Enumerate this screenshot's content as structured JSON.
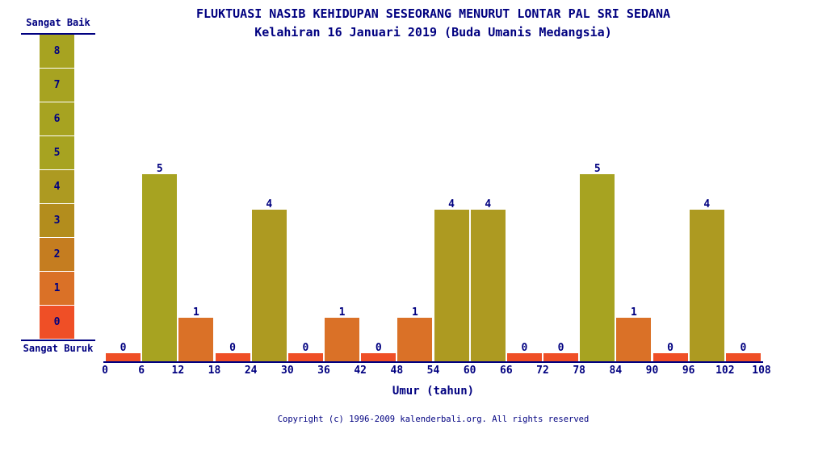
{
  "title": {
    "line1": "FLUKTUASI NASIB KEHIDUPAN SESEORANG MENURUT LONTAR PAL SRI SEDANA",
    "line2": "Kelahiran 16 Januari 2019 (Buda Umanis Medangsia)"
  },
  "legend": {
    "top_label": "Sangat Baik",
    "bottom_label": "Sangat Buruk",
    "levels": [
      8,
      7,
      6,
      5,
      4,
      3,
      2,
      1,
      0
    ]
  },
  "palette": {
    "8": "#a7a321",
    "7": "#a7a321",
    "6": "#a7a321",
    "5": "#a7a321",
    "4": "#ad9a21",
    "3": "#b38d1d",
    "2": "#c57d20",
    "1": "#da7127",
    "0": "#ef4f26"
  },
  "colors": {
    "text": "#000080",
    "axis": "#000080",
    "background": "#ffffff"
  },
  "chart_data": {
    "type": "bar",
    "title": "FLUKTUASI NASIB KEHIDUPAN SESEORANG MENURUT LONTAR PAL SRI SEDANA",
    "subtitle": "Kelahiran 16 Januari 2019 (Buda Umanis Medangsia)",
    "xlabel": "Umur (tahun)",
    "ylabel": "",
    "ylim": [
      0,
      8
    ],
    "grid": false,
    "legend_position": "left-scale",
    "x_ticks": [
      0,
      6,
      12,
      18,
      24,
      30,
      36,
      42,
      48,
      54,
      60,
      66,
      72,
      78,
      84,
      90,
      96,
      102,
      108
    ],
    "intervals": [
      [
        0,
        6
      ],
      [
        6,
        12
      ],
      [
        12,
        18
      ],
      [
        18,
        24
      ],
      [
        24,
        30
      ],
      [
        30,
        36
      ],
      [
        36,
        42
      ],
      [
        42,
        48
      ],
      [
        48,
        54
      ],
      [
        54,
        60
      ],
      [
        60,
        66
      ],
      [
        66,
        72
      ],
      [
        72,
        78
      ],
      [
        78,
        84
      ],
      [
        84,
        90
      ],
      [
        90,
        96
      ],
      [
        96,
        102
      ],
      [
        102,
        108
      ]
    ],
    "values": [
      0,
      5,
      1,
      0,
      4,
      0,
      1,
      0,
      1,
      4,
      4,
      0,
      0,
      5,
      1,
      0,
      4,
      0
    ],
    "bar_labels_shown": true,
    "scale_labels": {
      "max": "Sangat Baik",
      "min": "Sangat Buruk"
    }
  },
  "footer": {
    "copyright": "Copyright (c) 1996-2009 kalenderbali.org. All rights reserved"
  }
}
